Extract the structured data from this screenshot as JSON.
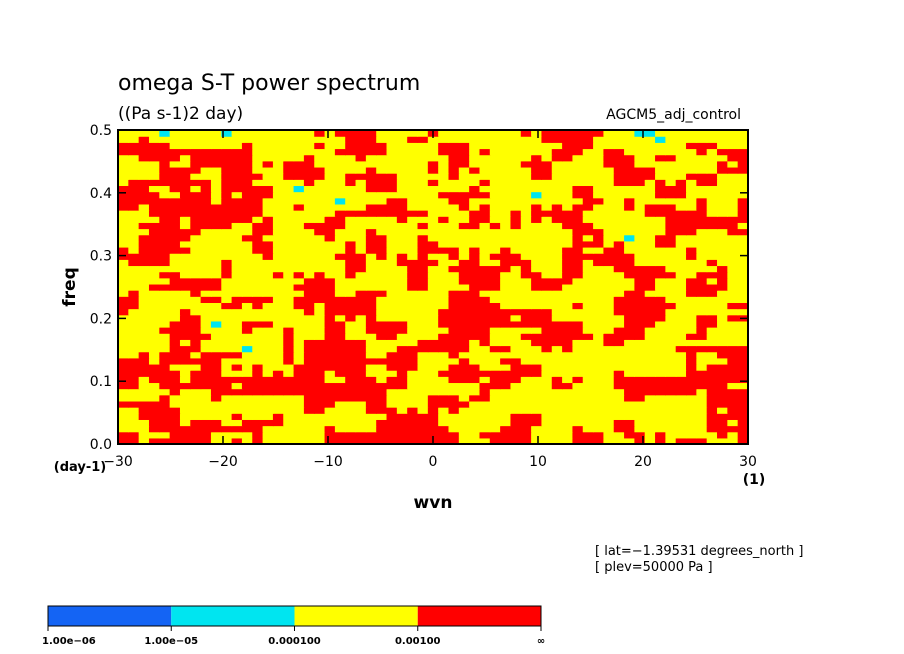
{
  "chart_data": {
    "type": "heatmap",
    "title": "omega S-T power spectrum",
    "subtitle": "((Pa s-1)2 day)",
    "experiment": "AGCM5_adj_control",
    "xlabel": "wvn",
    "ylabel": "freq",
    "x_unit": "(1)",
    "y_unit": "(day-1)",
    "xlim": [
      -30,
      30
    ],
    "ylim": [
      0,
      0.5
    ],
    "x_ticks": [
      "−30",
      "−20",
      "−10",
      "0",
      "10",
      "20",
      "30"
    ],
    "y_ticks": [
      "0.0",
      "0.1",
      "0.2",
      "0.3",
      "0.4",
      "0.5"
    ],
    "info": [
      "[ lat=−1.39531 degrees_north ]",
      "[ plev=50000 Pa ]"
    ],
    "levels": [
      "1.00e−06",
      "1.00e−05",
      "0.000100",
      "0.00100",
      "∞"
    ],
    "colors": [
      "#1464f4",
      "#00e5f0",
      "#ffff00",
      "#ff0000"
    ],
    "note": "filled contour of noisy power; red (>0.001) and yellow (1e-4..1e-3) dominate, sparse cyan, rare blue/white"
  }
}
